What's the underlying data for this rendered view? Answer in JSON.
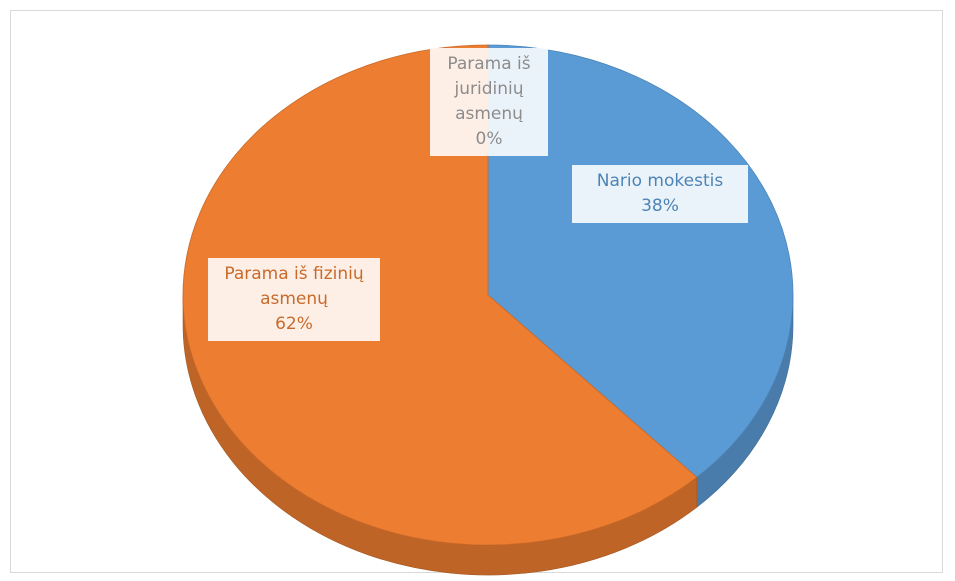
{
  "chart_data": {
    "type": "pie",
    "categories": [
      "Parama iš juridinių asmenų",
      "Nario mokestis",
      "Parama iš fizinių asmenų"
    ],
    "values": [
      0,
      38,
      62
    ],
    "value_labels": [
      "0%",
      "38%",
      "62%"
    ],
    "colors": [
      "#a5a5a5",
      "#5b9bd5",
      "#ed7d31"
    ]
  }
}
